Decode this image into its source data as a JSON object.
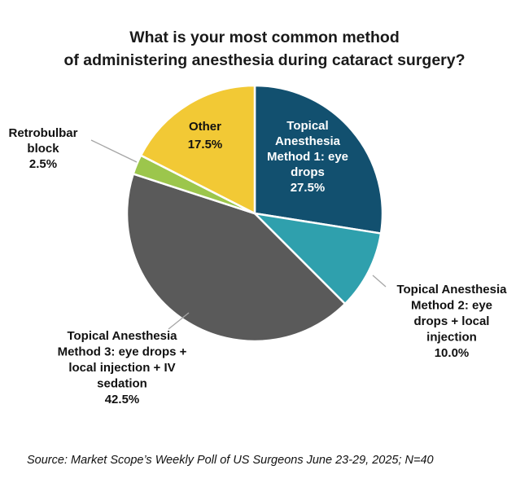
{
  "chart_data": {
    "type": "pie",
    "title_lines": [
      "What is your most common method",
      "of administering anesthesia during cataract surgery?"
    ],
    "start_angle_deg": 0,
    "direction": "clockwise",
    "slices": [
      {
        "label_lines": [
          "Topical",
          "Anesthesia",
          "Method 1: eye",
          "drops"
        ],
        "value": 27.5,
        "value_label": "27.5%",
        "color": "#12506f",
        "label_color": "#ffffff"
      },
      {
        "label_lines": [
          "Topical Anesthesia",
          "Method 2: eye",
          "drops + local",
          "injection"
        ],
        "value": 10.0,
        "value_label": "10.0%",
        "color": "#2fa0ad",
        "label_color": "#111111"
      },
      {
        "label_lines": [
          "Topical Anesthesia",
          "Method 3: eye drops +",
          "local injection + IV",
          "sedation"
        ],
        "value": 42.5,
        "value_label": "42.5%",
        "color": "#5a5a5a",
        "label_color": "#111111"
      },
      {
        "label_lines": [
          "Retrobulbar",
          "block"
        ],
        "value": 2.5,
        "value_label": "2.5%",
        "color": "#9cc64c",
        "label_color": "#111111"
      },
      {
        "label_lines": [
          "Other"
        ],
        "value": 17.5,
        "value_label": "17.5%",
        "color": "#f2c935",
        "label_color": "#111111"
      }
    ],
    "source": "Source: Market Scope’s Weekly Poll of US Surgeons June 23-29, 2025; N=40"
  }
}
